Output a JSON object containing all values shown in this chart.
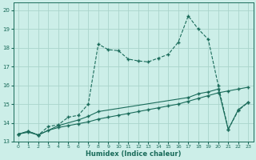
{
  "xlabel": "Humidex (Indice chaleur)",
  "background_color": "#cceee8",
  "grid_color": "#aad4cc",
  "line_color": "#1a6b5a",
  "xlim": [
    -0.5,
    23.5
  ],
  "ylim": [
    13.0,
    20.4
  ],
  "xticks": [
    0,
    1,
    2,
    3,
    4,
    5,
    6,
    7,
    8,
    9,
    10,
    11,
    12,
    13,
    14,
    15,
    16,
    17,
    18,
    19,
    20,
    21,
    22,
    23
  ],
  "yticks": [
    13,
    14,
    15,
    16,
    17,
    18,
    19,
    20
  ],
  "s1_x": [
    0,
    1,
    2,
    3,
    4,
    5,
    6,
    7,
    8,
    9,
    10,
    11,
    12,
    13,
    14,
    15,
    16,
    17,
    18,
    19,
    20,
    21,
    22,
    23
  ],
  "s1_y": [
    13.4,
    13.55,
    13.35,
    13.8,
    13.9,
    14.3,
    14.4,
    15.0,
    18.2,
    17.9,
    17.85,
    17.4,
    17.3,
    17.25,
    17.45,
    17.65,
    18.3,
    19.7,
    19.0,
    18.45,
    16.0,
    13.65,
    14.65,
    15.1
  ],
  "s2_x": [
    0,
    1,
    2,
    4,
    6,
    7,
    8,
    17,
    18,
    19,
    20,
    21,
    22,
    23
  ],
  "s2_y": [
    13.4,
    13.55,
    13.35,
    13.85,
    14.15,
    14.35,
    14.6,
    15.35,
    15.55,
    15.65,
    15.8,
    13.65,
    14.7,
    15.1
  ],
  "s3_x": [
    0,
    1,
    2,
    3,
    4,
    5,
    6,
    7,
    8,
    9,
    10,
    11,
    12,
    13,
    14,
    15,
    16,
    17,
    18,
    19,
    20,
    21,
    22,
    23
  ],
  "s3_y": [
    13.4,
    13.5,
    13.35,
    13.6,
    13.75,
    13.85,
    13.95,
    14.05,
    14.2,
    14.3,
    14.4,
    14.5,
    14.6,
    14.7,
    14.8,
    14.9,
    15.0,
    15.15,
    15.3,
    15.45,
    15.6,
    15.7,
    15.8,
    15.9
  ]
}
